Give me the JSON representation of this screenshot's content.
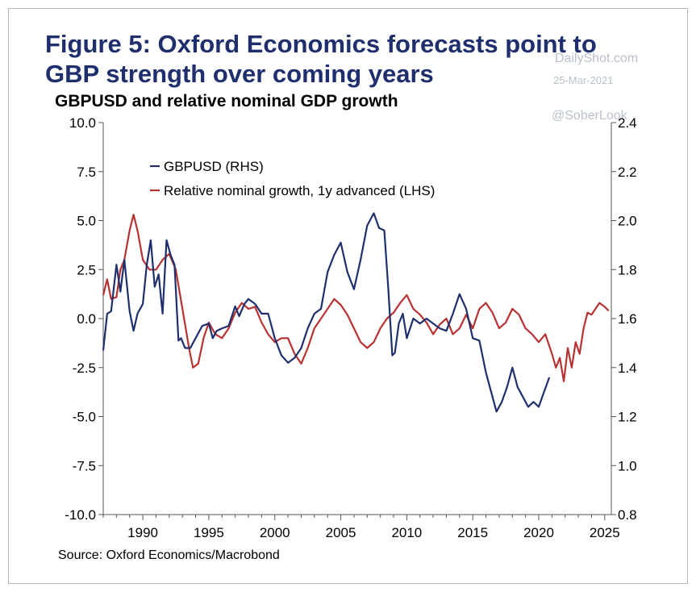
{
  "title": "Figure 5: Oxford Economics forecasts point to GBP strength over coming years",
  "subtitle": "GBPUSD and relative nominal GDP growth",
  "watermark": {
    "site": "DailyShot.com",
    "date": "25-Mar-2021",
    "handle": "@SoberLook"
  },
  "source": "Source: Oxford Economics/Macrobond",
  "colors": {
    "gbpusd": "#1f2f6e",
    "relative_growth": "#b83232",
    "title": "#1f2f6e",
    "watermark": "#b9c1cc"
  },
  "chart_data": {
    "type": "line",
    "title": "GBPUSD and relative nominal GDP growth",
    "xlim": [
      1987,
      2025.5
    ],
    "x_ticks": [
      "1990",
      "1995",
      "2000",
      "2005",
      "2010",
      "2015",
      "2020",
      "2025"
    ],
    "left_axis": {
      "ylim": [
        -10.0,
        10.0
      ],
      "ticks": [
        "10.0",
        "7.5",
        "5.0",
        "2.5",
        "0.0",
        "-2.5",
        "-5.0",
        "-7.5",
        "-10.0"
      ]
    },
    "right_axis": {
      "ylim": [
        0.8,
        2.4
      ],
      "ticks": [
        "2.4",
        "2.2",
        "2.0",
        "1.8",
        "1.6",
        "1.4",
        "1.2",
        "1.0",
        "0.8"
      ]
    },
    "legend_position": "top-left",
    "grid": false,
    "series": [
      {
        "name": "GBPUSD (RHS)",
        "axis": "right",
        "color": "#1f2f6e",
        "x": [
          1987.0,
          1987.3,
          1987.6,
          1988.0,
          1988.3,
          1988.6,
          1989.0,
          1989.3,
          1989.6,
          1990.0,
          1990.3,
          1990.6,
          1990.9,
          1991.2,
          1991.5,
          1991.8,
          1992.1,
          1992.4,
          1992.7,
          1992.9,
          1993.2,
          1993.6,
          1994.0,
          1994.5,
          1995.0,
          1995.3,
          1995.6,
          1996.0,
          1996.5,
          1997.0,
          1997.3,
          1997.7,
          1998.0,
          1998.5,
          1999.0,
          1999.5,
          2000.0,
          2000.5,
          2001.0,
          2001.5,
          2002.0,
          2002.5,
          2003.0,
          2003.5,
          2004.0,
          2004.5,
          2005.0,
          2005.5,
          2006.0,
          2006.5,
          2007.0,
          2007.5,
          2007.9,
          2008.3,
          2008.6,
          2008.9,
          2009.1,
          2009.4,
          2009.7,
          2010.0,
          2010.5,
          2011.0,
          2011.5,
          2012.0,
          2012.5,
          2013.0,
          2013.5,
          2014.0,
          2014.5,
          2015.0,
          2015.5,
          2016.0,
          2016.5,
          2016.8,
          2017.2,
          2017.6,
          2018.0,
          2018.4,
          2018.8,
          2019.2,
          2019.6,
          2020.0,
          2020.4,
          2020.8
        ],
        "y": [
          1.47,
          1.62,
          1.63,
          1.82,
          1.71,
          1.84,
          1.63,
          1.55,
          1.62,
          1.66,
          1.82,
          1.92,
          1.73,
          1.78,
          1.62,
          1.92,
          1.86,
          1.82,
          1.51,
          1.52,
          1.48,
          1.48,
          1.52,
          1.57,
          1.58,
          1.52,
          1.55,
          1.56,
          1.57,
          1.65,
          1.61,
          1.66,
          1.68,
          1.66,
          1.62,
          1.62,
          1.52,
          1.45,
          1.42,
          1.44,
          1.48,
          1.56,
          1.62,
          1.64,
          1.79,
          1.86,
          1.91,
          1.79,
          1.72,
          1.84,
          1.98,
          2.03,
          1.97,
          1.96,
          1.72,
          1.45,
          1.46,
          1.58,
          1.62,
          1.52,
          1.6,
          1.58,
          1.6,
          1.58,
          1.56,
          1.55,
          1.62,
          1.7,
          1.64,
          1.52,
          1.51,
          1.38,
          1.28,
          1.22,
          1.26,
          1.32,
          1.4,
          1.32,
          1.28,
          1.24,
          1.26,
          1.24,
          1.3,
          1.36
        ]
      },
      {
        "name": "Relative nominal growth, 1y advanced (LHS)",
        "axis": "left",
        "color": "#b83232",
        "x": [
          1987.0,
          1987.3,
          1987.6,
          1988.0,
          1988.3,
          1988.6,
          1989.0,
          1989.3,
          1989.6,
          1990.0,
          1990.5,
          1991.0,
          1991.5,
          1992.0,
          1992.5,
          1993.0,
          1993.5,
          1993.8,
          1994.2,
          1994.6,
          1995.0,
          1995.5,
          1996.0,
          1996.5,
          1997.0,
          1997.5,
          1998.0,
          1998.5,
          1999.0,
          1999.5,
          2000.0,
          2000.5,
          2001.0,
          2001.5,
          2002.0,
          2002.5,
          2003.0,
          2003.5,
          2004.0,
          2004.5,
          2005.0,
          2005.5,
          2006.0,
          2006.5,
          2007.0,
          2007.5,
          2008.0,
          2008.5,
          2009.0,
          2009.5,
          2010.0,
          2010.5,
          2011.0,
          2011.5,
          2012.0,
          2012.5,
          2013.0,
          2013.5,
          2014.0,
          2014.5,
          2015.0,
          2015.5,
          2016.0,
          2016.5,
          2017.0,
          2017.5,
          2018.0,
          2018.5,
          2019.0,
          2019.5,
          2020.0,
          2020.5,
          2021.0,
          2021.3,
          2021.6,
          2021.9,
          2022.2,
          2022.5,
          2022.8,
          2023.1,
          2023.4,
          2023.7,
          2024.0,
          2024.3,
          2024.6,
          2025.0,
          2025.3
        ],
        "y": [
          1.2,
          2.0,
          1.0,
          1.1,
          2.5,
          3.0,
          4.5,
          5.3,
          4.5,
          3.0,
          2.5,
          2.5,
          3.0,
          3.3,
          2.5,
          0.5,
          -1.5,
          -2.5,
          -2.3,
          -1.0,
          -0.2,
          -0.8,
          -1.0,
          -0.5,
          0.3,
          0.8,
          0.5,
          0.6,
          -0.2,
          -0.8,
          -1.2,
          -1.0,
          -1.0,
          -1.8,
          -2.3,
          -1.5,
          -0.5,
          0.0,
          0.5,
          1.0,
          0.7,
          0.2,
          -0.5,
          -1.2,
          -1.5,
          -1.2,
          -0.5,
          0.0,
          0.3,
          0.8,
          1.2,
          0.5,
          0.2,
          -0.2,
          -0.8,
          -0.3,
          0.0,
          -0.8,
          -0.5,
          0.2,
          -0.5,
          0.5,
          0.8,
          0.3,
          -0.5,
          -0.2,
          0.5,
          0.2,
          -0.5,
          -0.8,
          -1.2,
          -0.8,
          -1.8,
          -2.5,
          -2.0,
          -3.2,
          -1.5,
          -2.5,
          -1.2,
          -1.8,
          -0.5,
          0.3,
          0.2,
          0.5,
          0.8,
          0.6,
          0.4
        ]
      }
    ]
  }
}
